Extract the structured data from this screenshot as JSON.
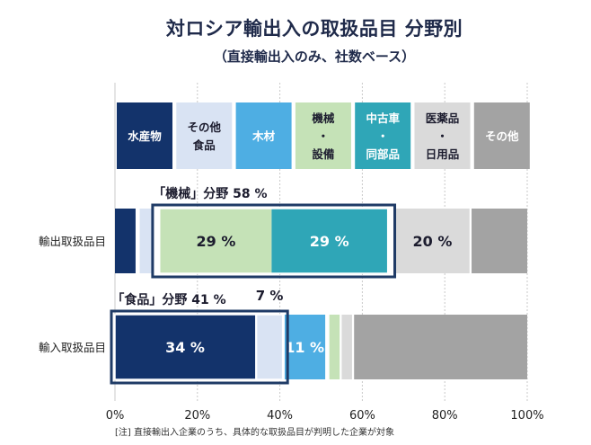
{
  "title": "対ロシア輸出入の取扱品目 分野別",
  "subtitle": "（直接輸出入のみ、社数ベース）",
  "footnote": "[注]  直接輸出入企業のうち、具体的な取扱品目が判明した企業が対象",
  "chart_data": {
    "type": "bar",
    "orientation": "horizontal-stacked",
    "xlim": [
      0,
      100
    ],
    "x_ticks": [
      "0%",
      "20%",
      "40%",
      "60%",
      "80%",
      "100%"
    ],
    "legend": [
      {
        "key": "fish",
        "lines": [
          "水産物"
        ],
        "color": "#13336b",
        "text_color": "#ffffff"
      },
      {
        "key": "food",
        "lines": [
          "その他",
          "食品"
        ],
        "color": "#d9e3f3",
        "text_color": "#1c1c2e"
      },
      {
        "key": "wood",
        "lines": [
          "木材"
        ],
        "color": "#4eaee3",
        "text_color": "#ffffff"
      },
      {
        "key": "machine",
        "lines": [
          "機械",
          "・",
          "設備"
        ],
        "color": "#c5e2b7",
        "text_color": "#1c1c2e"
      },
      {
        "key": "car",
        "lines": [
          "中古車",
          "・",
          "同部品"
        ],
        "color": "#2fa6b7",
        "text_color": "#ffffff"
      },
      {
        "key": "medicine",
        "lines": [
          "医薬品",
          "・",
          "日用品"
        ],
        "color": "#dadada",
        "text_color": "#1c1c2e"
      },
      {
        "key": "other",
        "lines": [
          "その他"
        ],
        "color": "#a3a3a3",
        "text_color": "#ffffff"
      }
    ],
    "series": [
      {
        "name": "輸出取扱品目",
        "segments": [
          {
            "key": "fish",
            "start": 0,
            "end": 5,
            "label": ""
          },
          {
            "key": "food",
            "start": 6,
            "end": 9,
            "label": ""
          },
          {
            "key": "machine",
            "start": 11,
            "end": 38,
            "label": "29 %"
          },
          {
            "key": "car",
            "start": 38,
            "end": 66,
            "label": "29 %"
          },
          {
            "key": "medicine",
            "start": 68,
            "end": 86,
            "label": "20 %"
          },
          {
            "key": "other",
            "start": 86.5,
            "end": 100,
            "label": ""
          }
        ],
        "highlight": {
          "start": 10,
          "end": 67,
          "label": "「機械」分野 58 %"
        }
      },
      {
        "name": "輸入取扱品目",
        "segments": [
          {
            "key": "fish",
            "start": 0,
            "end": 34,
            "label": "34 %"
          },
          {
            "key": "food",
            "start": 34.5,
            "end": 40.5,
            "label": ""
          },
          {
            "key": "wood",
            "start": 41,
            "end": 51,
            "label": "11 %"
          },
          {
            "key": "machine",
            "start": 52,
            "end": 54.5,
            "label": ""
          },
          {
            "key": "medicine",
            "start": 55,
            "end": 57.5,
            "label": ""
          },
          {
            "key": "other",
            "start": 58,
            "end": 100,
            "label": ""
          }
        ],
        "highlight": {
          "start": 0,
          "end": 41,
          "label": "「食品」分野 41 %"
        },
        "extra_label": "7 %"
      }
    ]
  }
}
